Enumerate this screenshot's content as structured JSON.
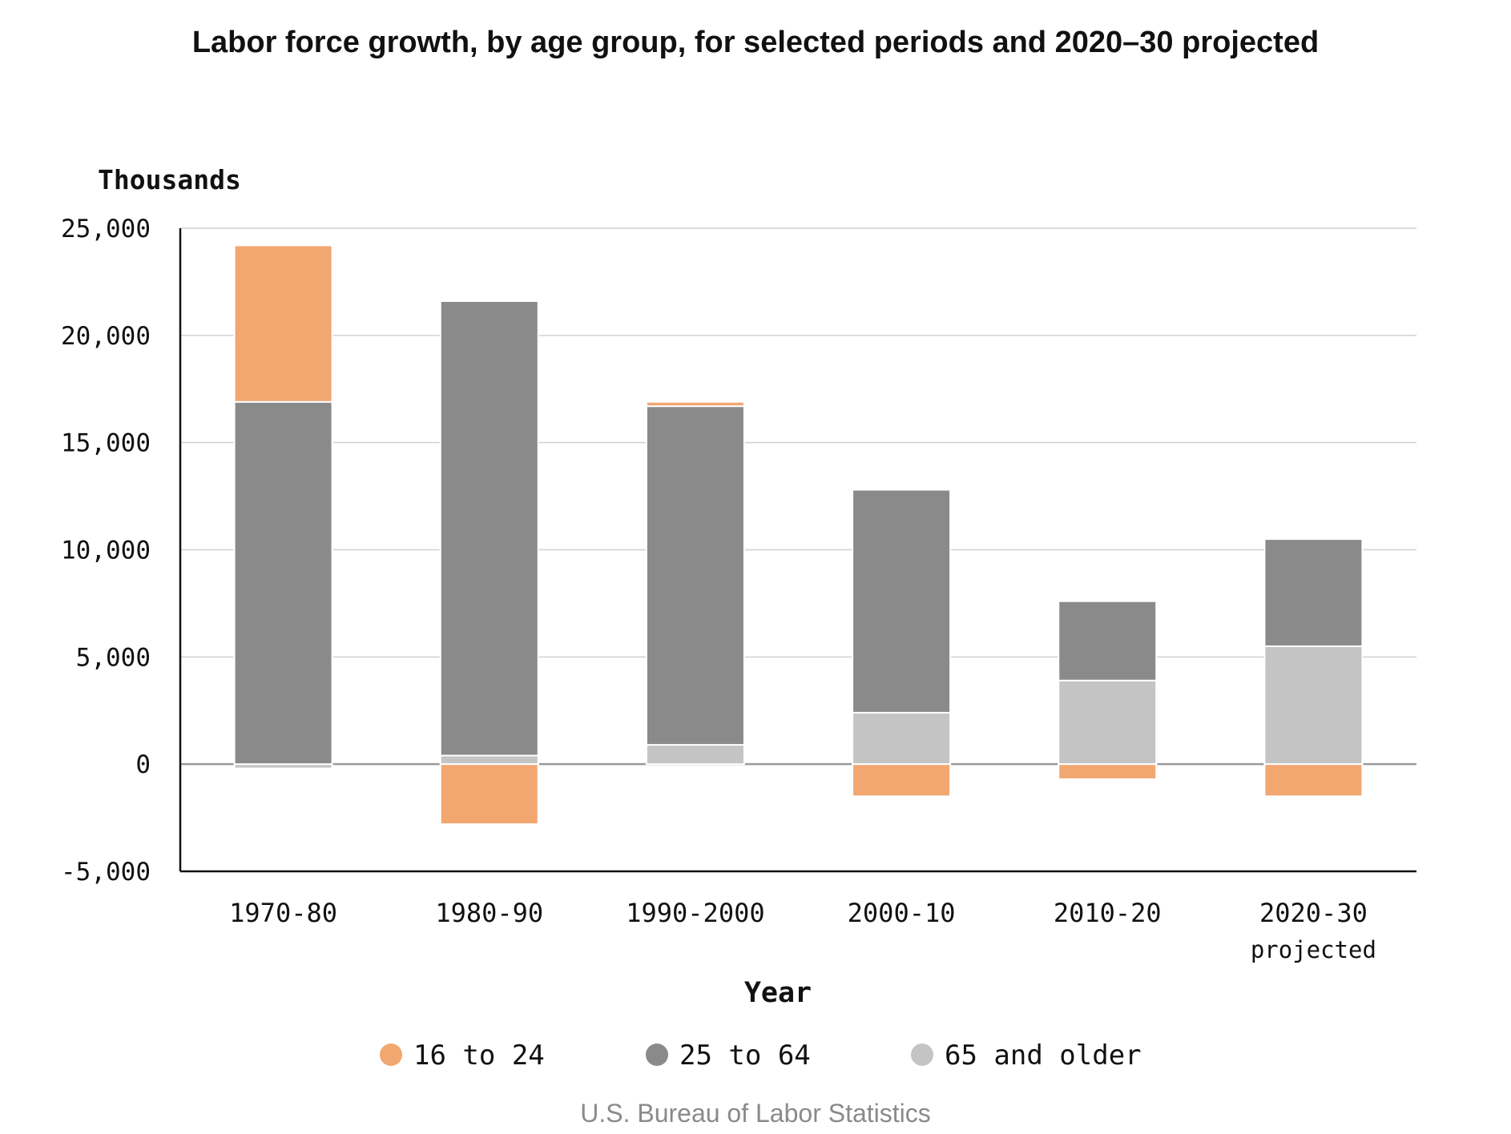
{
  "chart_data": {
    "type": "bar",
    "stacked": true,
    "title": "Labor force growth, by age group, for selected periods and 2020–30 projected",
    "ylabel": "Thousands",
    "xlabel": "Year",
    "ylim": [
      -5000,
      25000
    ],
    "yticks": [
      25000,
      20000,
      15000,
      10000,
      5000,
      0,
      -5000
    ],
    "ytick_labels": [
      "25,000",
      "20,000",
      "15,000",
      "10,000",
      "5,000",
      "0",
      "-5,000"
    ],
    "categories": [
      [
        "1970-80"
      ],
      [
        "1980-90"
      ],
      [
        "1990-2000"
      ],
      [
        "2000-10"
      ],
      [
        "2010-20"
      ],
      [
        "2020-30",
        "projected"
      ]
    ],
    "series": [
      {
        "name": "16 to 24",
        "color": "#f2a670",
        "values": [
          7300,
          -2800,
          200,
          -1500,
          -700,
          -1500
        ]
      },
      {
        "name": "25 to 64",
        "color": "#8a8a8a",
        "values": [
          16900,
          21200,
          15800,
          10400,
          3700,
          5000
        ]
      },
      {
        "name": "65 and older",
        "color": "#c4c4c4",
        "values": [
          -200,
          400,
          900,
          2400,
          3900,
          5500
        ]
      }
    ],
    "grid": true,
    "legend_position": "bottom"
  },
  "source": "U.S. Bureau of Labor Statistics"
}
